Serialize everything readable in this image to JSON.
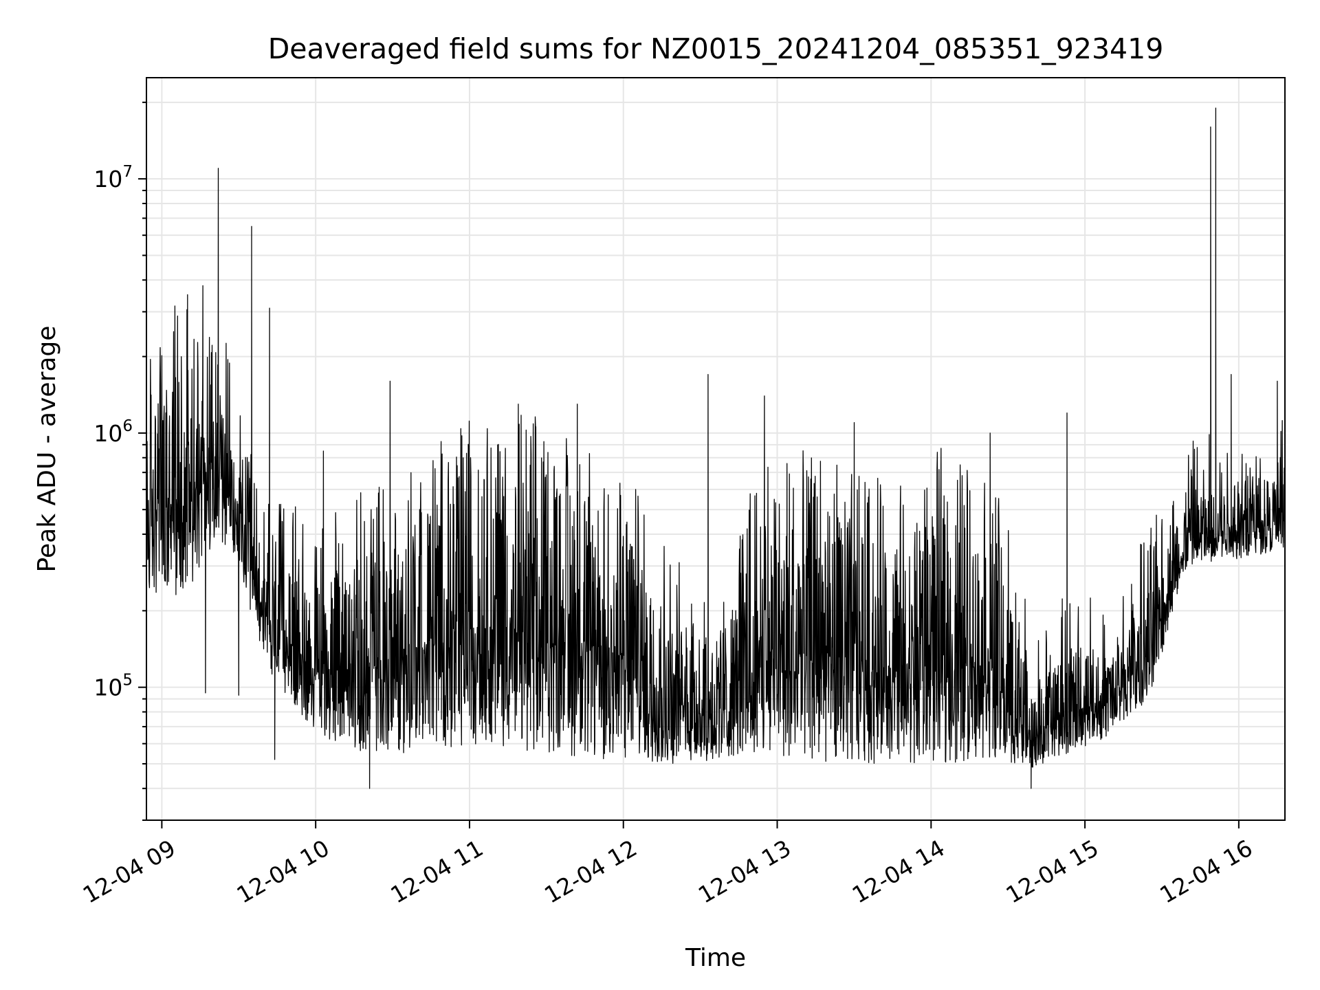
{
  "chart_data": {
    "type": "line",
    "title": "Deaveraged field sums for NZ0015_20241204_085351_923419",
    "xlabel": "Time",
    "ylabel": "Peak ADU - average",
    "y_scale": "log",
    "ylim": [
      30000,
      25000000
    ],
    "xlim": [
      "2024-12-04 08:54",
      "2024-12-04 16:18"
    ],
    "grid": true,
    "line_color": "#000000",
    "x_ticks": [
      {
        "label": "12-04 09",
        "time": "2024-12-04 09:00"
      },
      {
        "label": "12-04 10",
        "time": "2024-12-04 10:00"
      },
      {
        "label": "12-04 11",
        "time": "2024-12-04 11:00"
      },
      {
        "label": "12-04 12",
        "time": "2024-12-04 12:00"
      },
      {
        "label": "12-04 13",
        "time": "2024-12-04 13:00"
      },
      {
        "label": "12-04 14",
        "time": "2024-12-04 14:00"
      },
      {
        "label": "12-04 15",
        "time": "2024-12-04 15:00"
      },
      {
        "label": "12-04 16",
        "time": "2024-12-04 16:00"
      }
    ],
    "y_ticks": [
      {
        "base": "10",
        "exp": "5",
        "value": 100000
      },
      {
        "base": "10",
        "exp": "6",
        "value": 1000000
      },
      {
        "base": "10",
        "exp": "7",
        "value": 10000000
      }
    ],
    "series": [
      {
        "profile": [
          [
            "2024-12-04 08:54",
            220000,
            1400000
          ],
          [
            "2024-12-04 09:03",
            220000,
            1800000
          ],
          [
            "2024-12-04 09:12",
            260000,
            2400000
          ],
          [
            "2024-12-04 09:22",
            400000,
            2000000
          ],
          [
            "2024-12-04 09:30",
            280000,
            700000
          ],
          [
            "2024-12-04 09:40",
            120000,
            350000
          ],
          [
            "2024-12-04 09:50",
            90000,
            300000
          ],
          [
            "2024-12-04 10:00",
            65000,
            250000
          ],
          [
            "2024-12-04 10:20",
            55000,
            350000
          ],
          [
            "2024-12-04 10:40",
            55000,
            500000
          ],
          [
            "2024-12-04 11:00",
            60000,
            700000
          ],
          [
            "2024-12-04 11:30",
            55000,
            650000
          ],
          [
            "2024-12-04 12:00",
            50000,
            500000
          ],
          [
            "2024-12-04 12:20",
            50000,
            180000
          ],
          [
            "2024-12-04 12:40",
            52000,
            150000
          ],
          [
            "2024-12-04 12:50",
            55000,
            450000
          ],
          [
            "2024-12-04 13:20",
            50000,
            500000
          ],
          [
            "2024-12-04 13:45",
            50000,
            350000
          ],
          [
            "2024-12-04 14:05",
            50000,
            500000
          ],
          [
            "2024-12-04 14:25",
            52000,
            400000
          ],
          [
            "2024-12-04 14:40",
            48000,
            90000
          ],
          [
            "2024-12-04 14:55",
            55000,
            150000
          ],
          [
            "2024-12-04 15:10",
            65000,
            130000
          ],
          [
            "2024-12-04 15:25",
            90000,
            250000
          ],
          [
            "2024-12-04 15:40",
            300000,
            550000
          ],
          [
            "2024-12-04 16:00",
            320000,
            700000
          ],
          [
            "2024-12-04 16:18",
            350000,
            650000
          ]
        ],
        "spikes": [
          [
            "2024-12-04 09:10",
            3500000
          ],
          [
            "2024-12-04 09:16",
            3800000
          ],
          [
            "2024-12-04 09:17",
            95000
          ],
          [
            "2024-12-04 09:22",
            11000000
          ],
          [
            "2024-12-04 09:30",
            93000
          ],
          [
            "2024-12-04 09:35",
            6500000
          ],
          [
            "2024-12-04 09:35",
            3800000
          ],
          [
            "2024-12-04 09:42",
            3100000
          ],
          [
            "2024-12-04 09:44",
            52000
          ],
          [
            "2024-12-04 10:03",
            850000
          ],
          [
            "2024-12-04 10:21",
            40000
          ],
          [
            "2024-12-04 10:29",
            1600000
          ],
          [
            "2024-12-04 11:19",
            1300000
          ],
          [
            "2024-12-04 11:42",
            1300000
          ],
          [
            "2024-12-04 12:33",
            1700000
          ],
          [
            "2024-12-04 12:55",
            1400000
          ],
          [
            "2024-12-04 13:30",
            1100000
          ],
          [
            "2024-12-04 14:23",
            1000000
          ],
          [
            "2024-12-04 14:39",
            40000
          ],
          [
            "2024-12-04 14:53",
            1200000
          ],
          [
            "2024-12-04 15:49",
            16000000
          ],
          [
            "2024-12-04 15:51",
            19000000
          ],
          [
            "2024-12-04 15:51",
            3500000
          ],
          [
            "2024-12-04 15:57",
            1700000
          ],
          [
            "2024-12-04 16:15",
            1600000
          ]
        ]
      }
    ]
  }
}
